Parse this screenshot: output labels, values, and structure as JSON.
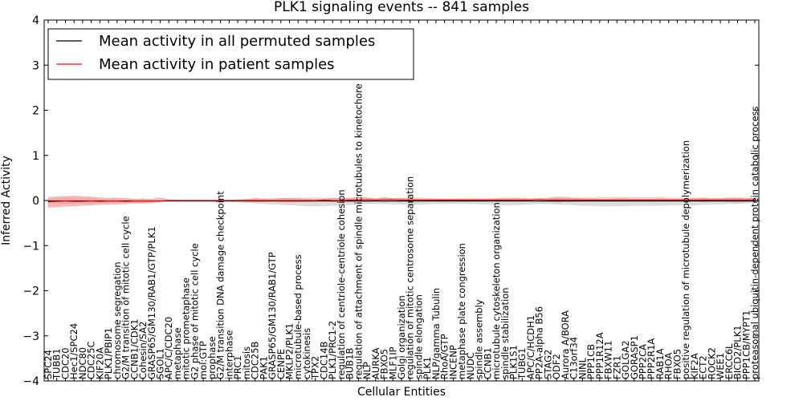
{
  "chart_data": {
    "type": "line",
    "title": "PLK1 signaling events -- 841 samples",
    "xlabel": "Cellular Entities",
    "ylabel": "Inferred Activity",
    "ylim": [
      -4,
      4
    ],
    "yticks": [
      -4,
      -3,
      -2,
      -1,
      0,
      1,
      2,
      3,
      4
    ],
    "legend_position": "top-left",
    "categories": [
      "SPC24",
      "TUBB1",
      "CDC20",
      "Hec1/SPC24",
      "NDC80",
      "CDC25C",
      "KIF20A",
      "PLK1/PBIP1",
      "chromosome segregation",
      "G2/M transition of mitotic cell cycle",
      "CCNB1/CDK1",
      "Cohesin/SA2",
      "GRASP65/GM130/RAB1/GTP/PLK1",
      "SGOL1",
      "APC/C/CDC20",
      "metaphase",
      "mitotic prometaphase",
      "G2 phase of mitotic cell cycle",
      "mol:GTP",
      "prophase",
      "G2/M transition DNA damage checkpoint",
      "interphase",
      "PRC1",
      "mitosis",
      "CDC25B",
      "PAK1",
      "GRASP65/GM130/RAB1/GTP",
      "CENPE",
      "MKLP2/PLK1",
      "microtubule-based process",
      "cytokinesis",
      "TPX2",
      "CDC14B",
      "PLK1/PRC1-2",
      "regulation of centriole-centriole cohesion",
      "BUB1B",
      "regulation of attachment of spindle microtubules to kinetochore",
      "NLP",
      "AURKA",
      "FBXO5",
      "MLF1IP",
      "Golgi organization",
      "regulation of mitotic centrosome separation",
      "spindle elongation",
      "PLK1",
      "NLP/gamma Tubulin",
      "RhoA/GTP",
      "INCENP",
      "metaphase plate congression",
      "NUDC",
      "spindle assembly",
      "CCNB1",
      "microtubule cytoskeleton organization",
      "spindle stabilization",
      "PLK1S1",
      "TUBG1",
      "APC/C/HCDH1",
      "PP2A-alpha B56",
      "STAG2",
      "ODF2",
      "Aurora A/BORA",
      "C13orf34",
      "NINL",
      "PPP1CB",
      "PPP1R12A",
      "FBXW11",
      "FZR1",
      "GOLGA2",
      "GORASP1",
      "PPP2CA",
      "PPP2R1A",
      "RAB1A",
      "RHOA",
      "FBXO5",
      "positive regulation of microtubule depolymerization",
      "KIF2A",
      "ECT2",
      "ROCK2",
      "WEE1",
      "ERCC6L",
      "BICD2/PLK1",
      "PPP1CB/MYPT1",
      "proteasomal ubiquitin-dependent protein catabolic process"
    ],
    "series": [
      {
        "name": "Mean activity in all permuted samples",
        "color": "#000000",
        "values": [
          -0.01,
          -0.01,
          -0.01,
          -0.01,
          -0.01,
          -0.01,
          -0.01,
          -0.01,
          -0.01,
          -0.01,
          -0.01,
          -0.01,
          -0.01,
          -0.01,
          -0.01,
          -0.01,
          -0.01,
          -0.01,
          -0.01,
          -0.01,
          -0.01,
          -0.01,
          -0.01,
          -0.01,
          -0.01,
          -0.01,
          -0.01,
          -0.01,
          -0.01,
          -0.01,
          -0.01,
          -0.01,
          -0.01,
          -0.01,
          -0.01,
          -0.01,
          -0.01,
          -0.01,
          -0.01,
          -0.01,
          -0.01,
          -0.01,
          -0.01,
          -0.01,
          -0.01,
          -0.01,
          -0.01,
          -0.01,
          -0.01,
          -0.01,
          -0.01,
          -0.01,
          -0.01,
          -0.01,
          -0.01,
          -0.01,
          -0.01,
          -0.01,
          -0.01,
          -0.01,
          -0.01,
          -0.01,
          -0.01,
          -0.01,
          -0.01,
          -0.01,
          -0.01,
          -0.01,
          -0.01,
          -0.01,
          -0.01,
          -0.01,
          -0.01,
          -0.01,
          -0.01,
          -0.01,
          -0.01,
          -0.01,
          -0.01,
          -0.01,
          -0.01,
          -0.01,
          -0.01
        ],
        "band_color": "#bbbbbb",
        "band_upper": [
          0.03,
          0.04,
          0.05,
          0.05,
          0.04,
          0.04,
          0.03,
          0.03,
          0.02,
          0.02,
          0.02,
          0.02,
          0.01,
          0.01,
          0.01,
          0.01,
          0.01,
          0.01,
          0.01,
          0.01,
          0.01,
          0.01,
          0.02,
          0.03,
          0.03,
          0.04,
          0.05,
          0.05,
          0.05,
          0.06,
          0.06,
          0.06,
          0.06,
          0.05,
          0.05,
          0.05,
          0.04,
          0.04,
          0.04,
          0.04,
          0.05,
          0.05,
          0.06,
          0.06,
          0.05,
          0.05,
          0.04,
          0.04,
          0.04,
          0.04,
          0.05,
          0.05,
          0.05,
          0.06,
          0.06,
          0.05,
          0.05,
          0.05,
          0.05,
          0.05,
          0.05,
          0.06,
          0.06,
          0.06,
          0.07,
          0.07,
          0.07,
          0.07,
          0.07,
          0.07,
          0.07,
          0.07,
          0.06,
          0.06,
          0.06,
          0.06,
          0.06,
          0.05,
          0.05,
          0.05,
          0.05,
          0.05,
          0.05
        ],
        "band_lower": [
          -0.05,
          -0.06,
          -0.07,
          -0.07,
          -0.06,
          -0.06,
          -0.05,
          -0.05,
          -0.04,
          -0.04,
          -0.04,
          -0.04,
          -0.03,
          -0.02,
          -0.02,
          -0.02,
          -0.02,
          -0.02,
          -0.02,
          -0.02,
          -0.02,
          -0.02,
          -0.04,
          -0.05,
          -0.06,
          -0.07,
          -0.08,
          -0.09,
          -0.1,
          -0.11,
          -0.12,
          -0.12,
          -0.12,
          -0.11,
          -0.1,
          -0.09,
          -0.08,
          -0.07,
          -0.07,
          -0.07,
          -0.08,
          -0.08,
          -0.09,
          -0.09,
          -0.08,
          -0.07,
          -0.07,
          -0.07,
          -0.07,
          -0.07,
          -0.08,
          -0.08,
          -0.09,
          -0.1,
          -0.1,
          -0.09,
          -0.08,
          -0.07,
          -0.07,
          -0.08,
          -0.09,
          -0.1,
          -0.11,
          -0.11,
          -0.12,
          -0.12,
          -0.12,
          -0.12,
          -0.11,
          -0.11,
          -0.11,
          -0.11,
          -0.1,
          -0.1,
          -0.1,
          -0.1,
          -0.09,
          -0.08,
          -0.08,
          -0.07,
          -0.07,
          -0.06,
          -0.05
        ]
      },
      {
        "name": "Mean activity in patient samples",
        "color": "#ff0000",
        "values": [
          -0.03,
          -0.02,
          -0.01,
          -0.02,
          -0.02,
          -0.01,
          -0.02,
          -0.01,
          -0.01,
          -0.02,
          -0.01,
          -0.01,
          -0.01,
          -0.01,
          0.0,
          0.0,
          0.0,
          0.0,
          0.0,
          0.0,
          0.0,
          0.0,
          0.0,
          0.0,
          0.0,
          0.0,
          0.0,
          0.0,
          0.0,
          0.0,
          0.0,
          0.0,
          0.01,
          0.0,
          0.0,
          0.01,
          0.01,
          0.02,
          0.01,
          0.02,
          0.02,
          0.01,
          0.01,
          0.01,
          0.01,
          0.01,
          0.01,
          0.01,
          0.01,
          0.01,
          0.01,
          0.01,
          0.01,
          0.01,
          0.01,
          0.01,
          0.01,
          0.02,
          0.01,
          0.01,
          0.01,
          0.01,
          0.01,
          0.01,
          0.01,
          0.01,
          0.01,
          0.01,
          0.01,
          0.01,
          0.01,
          0.01,
          0.01,
          0.01,
          0.01,
          0.01,
          0.01,
          0.01,
          0.01,
          0.01,
          0.01,
          0.01,
          0.01
        ],
        "band_color": "#f08080",
        "band_upper": [
          0.07,
          0.08,
          0.09,
          0.1,
          0.09,
          0.08,
          0.06,
          0.05,
          0.06,
          0.05,
          0.03,
          0.04,
          0.03,
          0.06,
          0.02,
          0.01,
          0.01,
          0.01,
          0.01,
          0.01,
          0.01,
          0.01,
          0.01,
          0.02,
          0.05,
          0.03,
          0.02,
          0.05,
          0.05,
          0.04,
          0.03,
          0.02,
          0.03,
          0.05,
          0.04,
          0.05,
          0.08,
          0.06,
          0.04,
          0.07,
          0.04,
          0.05,
          0.04,
          0.03,
          0.03,
          0.03,
          0.03,
          0.03,
          0.04,
          0.04,
          0.03,
          0.03,
          0.04,
          0.04,
          0.04,
          0.04,
          0.03,
          0.04,
          0.05,
          0.08,
          0.07,
          0.05,
          0.04,
          0.04,
          0.03,
          0.03,
          0.04,
          0.04,
          0.03,
          0.03,
          0.03,
          0.04,
          0.03,
          0.03,
          0.04,
          0.04,
          0.05,
          0.04,
          0.04,
          0.06,
          0.06,
          0.05,
          0.05
        ],
        "band_lower": [
          -0.15,
          -0.14,
          -0.13,
          -0.12,
          -0.11,
          -0.1,
          -0.09,
          -0.08,
          -0.08,
          -0.07,
          -0.06,
          -0.06,
          -0.05,
          -0.03,
          -0.01,
          -0.01,
          -0.01,
          -0.01,
          -0.01,
          -0.01,
          -0.01,
          -0.01,
          -0.01,
          -0.02,
          -0.03,
          -0.03,
          -0.02,
          -0.03,
          -0.04,
          -0.03,
          -0.03,
          -0.02,
          -0.02,
          -0.03,
          -0.03,
          -0.03,
          -0.03,
          -0.03,
          -0.02,
          -0.03,
          -0.02,
          -0.03,
          -0.02,
          -0.02,
          -0.02,
          -0.02,
          -0.02,
          -0.02,
          -0.02,
          -0.02,
          -0.02,
          -0.02,
          -0.02,
          -0.02,
          -0.02,
          -0.02,
          -0.02,
          -0.02,
          -0.03,
          -0.04,
          -0.03,
          -0.03,
          -0.02,
          -0.02,
          -0.02,
          -0.02,
          -0.02,
          -0.02,
          -0.02,
          -0.02,
          -0.02,
          -0.02,
          -0.02,
          -0.02,
          -0.02,
          -0.02,
          -0.03,
          -0.02,
          -0.02,
          -0.03,
          -0.04,
          -0.03,
          -0.02
        ]
      }
    ]
  }
}
